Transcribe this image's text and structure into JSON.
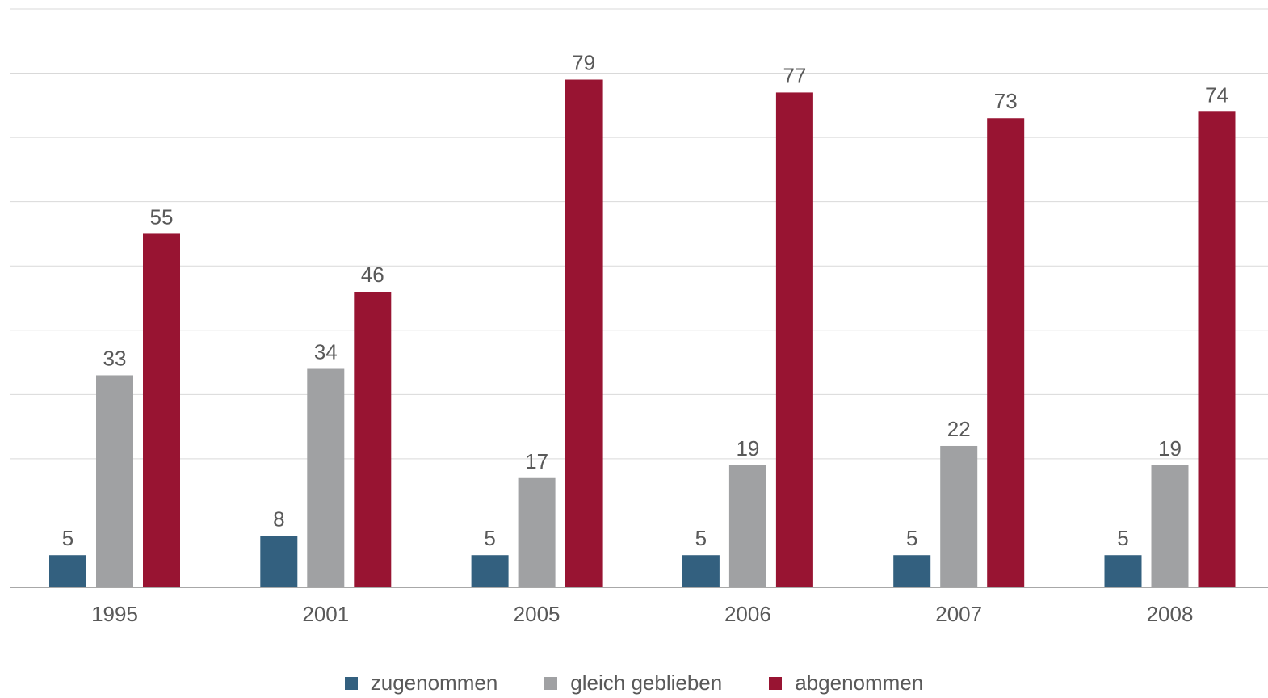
{
  "chart_data": {
    "type": "bar",
    "categories": [
      "1995",
      "2001",
      "2005",
      "2006",
      "2007",
      "2008"
    ],
    "series": [
      {
        "name": "zugenommen",
        "color": "#33607f",
        "values": [
          5,
          8,
          5,
          5,
          5,
          5
        ]
      },
      {
        "name": "gleich geblieben",
        "color": "#a0a1a3",
        "values": [
          33,
          34,
          17,
          19,
          22,
          19
        ]
      },
      {
        "name": "abgenommen",
        "color": "#981432",
        "values": [
          55,
          46,
          79,
          77,
          73,
          74
        ]
      }
    ],
    "ylim": [
      0,
      90
    ],
    "grid": true,
    "legend_position": "bottom-center"
  }
}
